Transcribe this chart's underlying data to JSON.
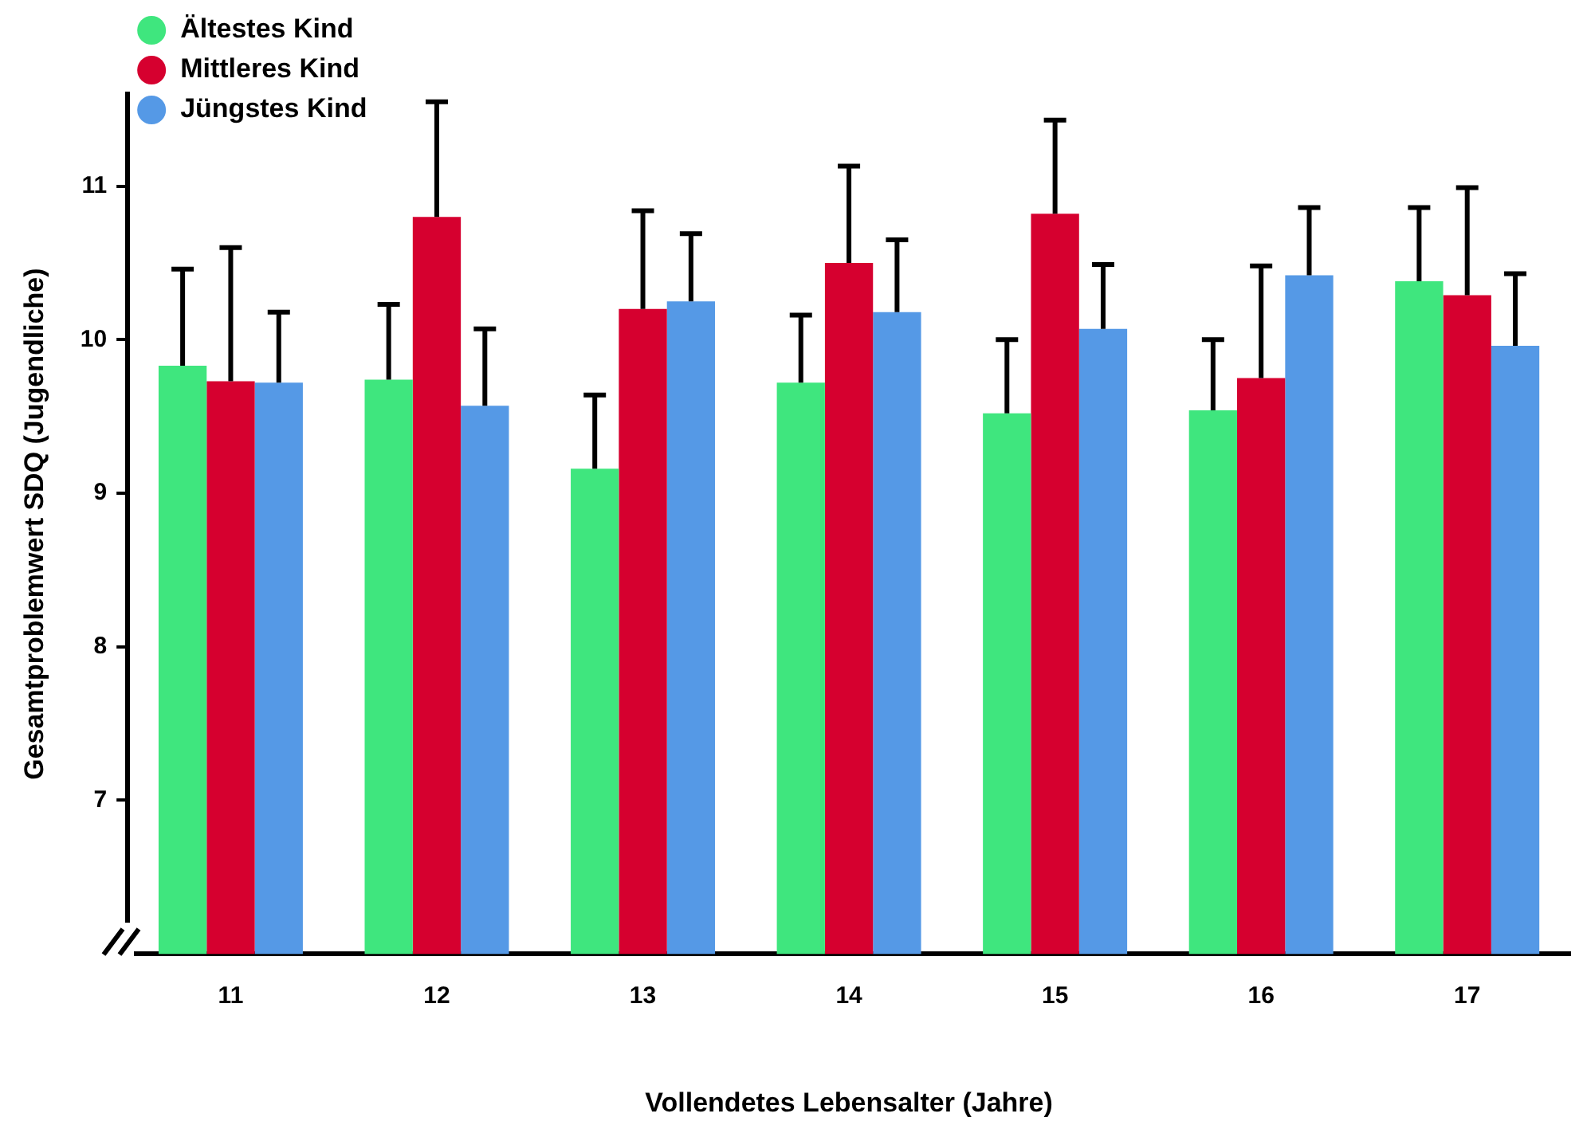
{
  "chart_data": {
    "type": "bar",
    "xlabel": "Vollendetes Lebensalter (Jahre)",
    "ylabel": "Gesamtproblemwert SDQ (Jugendliche)",
    "categories": [
      "11",
      "12",
      "13",
      "14",
      "15",
      "16",
      "17"
    ],
    "series": [
      {
        "name": "Ältestes Kind",
        "color": "#3fe67e",
        "values": [
          9.83,
          9.74,
          9.16,
          9.72,
          9.52,
          9.54,
          10.38
        ],
        "errors": [
          [
            9.83,
            10.46
          ],
          [
            9.74,
            10.23
          ],
          [
            9.16,
            9.64
          ],
          [
            9.72,
            10.16
          ],
          [
            9.52,
            10.0
          ],
          [
            9.54,
            10.0
          ],
          [
            10.38,
            10.86
          ]
        ]
      },
      {
        "name": "Mittleres Kind",
        "color": "#d6002f",
        "values": [
          9.73,
          10.8,
          10.2,
          10.5,
          10.82,
          9.75,
          10.29
        ],
        "errors": [
          [
            9.73,
            10.6
          ],
          [
            10.8,
            11.55
          ],
          [
            10.2,
            10.84
          ],
          [
            10.5,
            11.13
          ],
          [
            10.82,
            11.43
          ],
          [
            9.75,
            10.48
          ],
          [
            10.29,
            10.99
          ]
        ]
      },
      {
        "name": "Jüngstes Kind",
        "color": "#5599e6",
        "values": [
          9.72,
          9.57,
          10.25,
          10.18,
          10.07,
          10.42,
          9.96
        ],
        "errors": [
          [
            9.72,
            10.18
          ],
          [
            9.57,
            10.07
          ],
          [
            10.25,
            10.69
          ],
          [
            10.18,
            10.65
          ],
          [
            10.07,
            10.49
          ],
          [
            10.42,
            10.86
          ],
          [
            9.96,
            10.43
          ]
        ]
      }
    ],
    "ylim": [
      6,
      11.6
    ],
    "yticks": [
      7,
      8,
      9,
      10,
      11
    ],
    "grid": false,
    "legend": "top left"
  }
}
